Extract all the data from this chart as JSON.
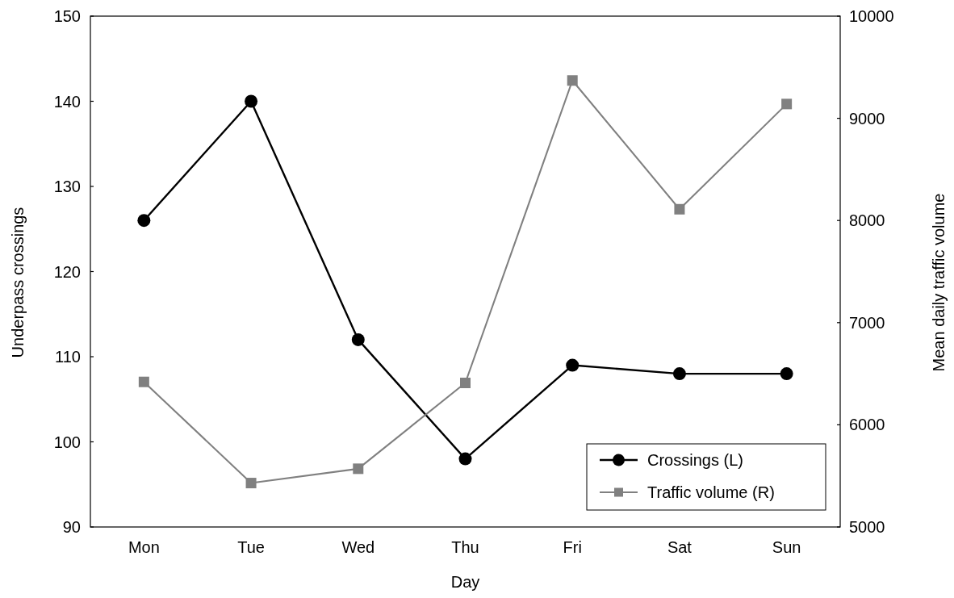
{
  "chart_data": {
    "type": "line",
    "xlabel": "Day",
    "ylabel": "Underpass crossings",
    "y2label": "Mean daily traffic volume",
    "categories": [
      "Mon",
      "Tue",
      "Wed",
      "Thu",
      "Fri",
      "Sat",
      "Sun"
    ],
    "ylim": [
      90,
      150
    ],
    "yticks": [
      90,
      100,
      110,
      120,
      130,
      140,
      150
    ],
    "y2lim": [
      5000,
      10000
    ],
    "y2ticks": [
      5000,
      6000,
      7000,
      8000,
      9000,
      10000
    ],
    "legend": "bottom right",
    "series": [
      {
        "name": "Crossings (L)",
        "color": "#000000",
        "marker": "circle",
        "values": [
          126,
          140,
          112,
          98,
          109,
          108,
          108
        ]
      },
      {
        "name": "Traffic volume (R)",
        "color": "#808080",
        "marker": "square",
        "axis": "y2",
        "values": [
          6420,
          5430,
          5570,
          6410,
          9370,
          8110,
          9140
        ]
      }
    ]
  }
}
